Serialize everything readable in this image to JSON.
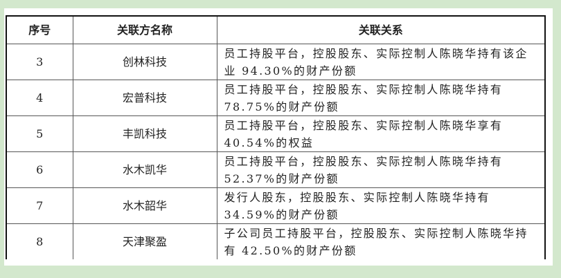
{
  "table": {
    "headers": [
      "序号",
      "关联方名称",
      "关联关系"
    ],
    "rows": [
      {
        "no": "3",
        "name": "创林科技",
        "relation": "员工持股平台，控股股东、实际控制人陈晓华持有该企业 94.30%的财产份额"
      },
      {
        "no": "4",
        "name": "宏普科技",
        "relation": "员工持股平台，控股股东、实际控制人陈晓华持有 78.75%的财产份额"
      },
      {
        "no": "5",
        "name": "丰凯科技",
        "relation": "员工持股平台，控股股东、实际控制人陈晓华享有 40.54%的权益"
      },
      {
        "no": "6",
        "name": "水木凯华",
        "relation": "员工持股平台，控股股东、实际控制人陈晓华持有 52.37%的财产份额"
      },
      {
        "no": "7",
        "name": "水木韶华",
        "relation": "发行人股东，控股股东、实际控制人陈晓华持有 34.59%的财产份额"
      },
      {
        "no": "8",
        "name": "天津聚盈",
        "relation": "子公司员工持股平台，控股股东、实际控制人陈晓华持有 42.50%的财产份额"
      }
    ]
  },
  "colors": {
    "background": "#d3e8cd",
    "paper": "#ffffff"
  }
}
